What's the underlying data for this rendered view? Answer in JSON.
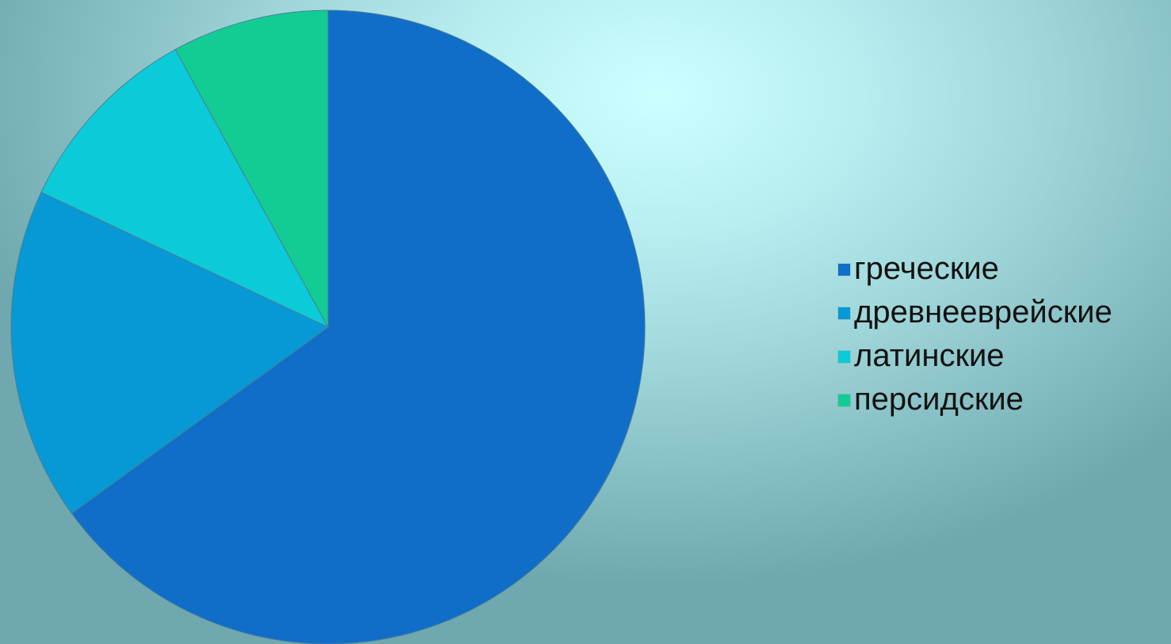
{
  "chart_data": {
    "type": "pie",
    "categories": [
      "греческие",
      "древнееврейские",
      "латинские",
      "персидские"
    ],
    "values": [
      65,
      17,
      10,
      8
    ],
    "colors": [
      "#106ec8",
      "#0699d6",
      "#0ccbd8",
      "#12cc94"
    ],
    "start_angle": "12 o'clock",
    "direction": "clockwise",
    "legend_position": "right"
  }
}
